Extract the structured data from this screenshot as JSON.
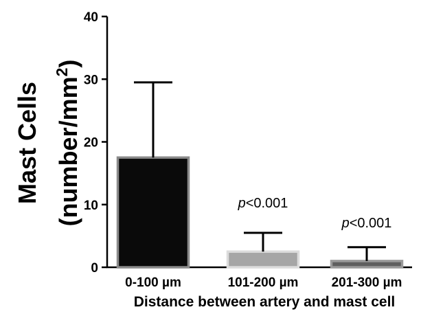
{
  "chart_data": {
    "type": "bar",
    "categories": [
      "0-100 µm",
      "101-200 µm",
      "201-300 µm"
    ],
    "values": [
      17.5,
      2.5,
      1.0
    ],
    "errors": [
      12.0,
      3.0,
      2.2
    ],
    "title": "",
    "xlabel": "Distance between artery and mast cell",
    "ylabel": "Mast Cells",
    "ylabel_line2_base": "(number/mm",
    "ylabel_line2_sup": "2",
    "ylabel_line2_end": ")",
    "ylim": [
      0,
      40
    ],
    "yticks": [
      0,
      10,
      20,
      30,
      40
    ],
    "grid": false,
    "annotations": [
      {
        "category_index": 1,
        "p_symbol": "p",
        "text": "<0.001"
      },
      {
        "category_index": 2,
        "p_symbol": "p",
        "text": "<0.001"
      }
    ],
    "colors": {
      "bar_fills": [
        "#0a0a0a",
        "#a6a6a6",
        "#5f5f5f"
      ],
      "bar_edges": [
        "#8a8a8a",
        "#dcdcdc",
        "#9a9a9a"
      ],
      "axis": "#000000"
    }
  }
}
